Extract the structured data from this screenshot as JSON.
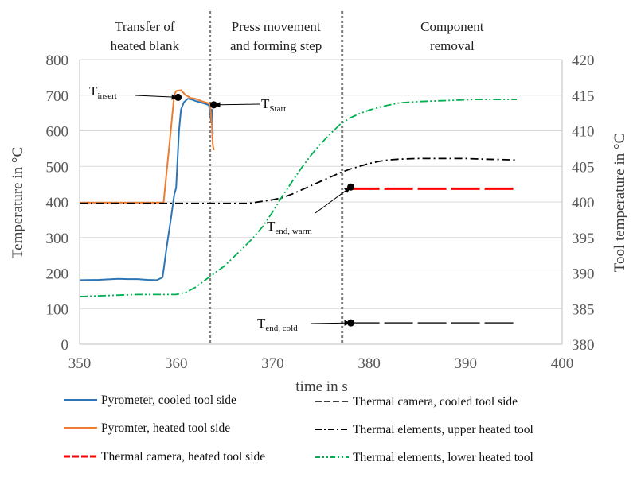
{
  "chart_data": {
    "type": "line",
    "xlabel": "time in s",
    "ylabel": "Temperature in °C",
    "y2label": "Tool temperature in °C",
    "xlim": [
      350,
      400
    ],
    "ylim": [
      0,
      800
    ],
    "y2lim": [
      380,
      420
    ],
    "x_ticks": [
      "350",
      "360",
      "370",
      "380",
      "390",
      "400"
    ],
    "y_ticks": [
      "0",
      "100",
      "200",
      "300",
      "400",
      "500",
      "600",
      "700",
      "800"
    ],
    "y2_ticks": [
      "380",
      "385",
      "390",
      "395",
      "400",
      "405",
      "410",
      "415",
      "420"
    ],
    "grid": "horizontal",
    "phases": [
      {
        "label_line1": "Transfer of",
        "label_line2": "heated blank",
        "x_start": 350,
        "x_end": 363.5
      },
      {
        "label_line1": "Press movement",
        "label_line2": "and forming step",
        "x_start": 363.5,
        "x_end": 377.2
      },
      {
        "label_line1": "Component",
        "label_line2": "removal",
        "x_start": 377.2,
        "x_end": 400
      }
    ],
    "phase_dividers_x": [
      363.5,
      377.2
    ],
    "annotations": [
      {
        "main": "T",
        "sub": "insert",
        "point_x": 360.2,
        "point_y": 694,
        "axis": "left"
      },
      {
        "main": "T",
        "sub": "Start",
        "point_x": 363.9,
        "point_y": 673,
        "axis": "left"
      },
      {
        "main": "T",
        "sub": "end, warm",
        "point_x": 378.1,
        "point_y": 442,
        "axis": "left"
      },
      {
        "main": "T",
        "sub": "end, cold",
        "point_x": 378.1,
        "point_y": 60,
        "axis": "left"
      }
    ],
    "series": [
      {
        "name": "Pyrometer, cooled tool side",
        "axis": "left",
        "color": "#2e75b6",
        "style": "solid",
        "x": [
          350,
          352,
          354,
          355,
          356,
          357,
          358,
          358.6,
          359.0,
          359.5,
          359.8,
          360.0,
          360.3,
          360.5,
          360.8,
          361.2,
          361.6,
          362.0,
          362.5,
          363.0,
          363.4,
          363.6,
          363.7,
          363.8
        ],
        "y": [
          180,
          181,
          184,
          183,
          183,
          181,
          180,
          188,
          270,
          360,
          420,
          440,
          600,
          660,
          680,
          690,
          688,
          684,
          680,
          676,
          672,
          630,
          660,
          590
        ]
      },
      {
        "name": "Pyromter, heated tool side",
        "axis": "left",
        "color": "#ed7d31",
        "style": "solid",
        "x": [
          350,
          352,
          355,
          357,
          358.7,
          359.3,
          359.8,
          360.0,
          360.5,
          361.0,
          361.5,
          362.0,
          362.5,
          363.0,
          363.5,
          363.7,
          363.8,
          363.9
        ],
        "y": [
          398,
          398,
          398,
          398,
          398,
          560,
          700,
          712,
          714,
          700,
          692,
          690,
          685,
          680,
          676,
          620,
          560,
          545
        ]
      },
      {
        "name": "Thermal camera, heated tool side",
        "axis": "left",
        "color": "#ff0000",
        "style": "dashed-bold",
        "x": [
          378.1,
          395.3
        ],
        "y": [
          437,
          437
        ]
      },
      {
        "name": "Thermal camera, cooled tool side",
        "axis": "left",
        "color": "#404040",
        "style": "dashed",
        "x": [
          378.1,
          395.3
        ],
        "y": [
          60,
          60
        ]
      },
      {
        "name": "Thermal elements, upper heated tool",
        "axis": "right",
        "color": "#000000",
        "style": "dashdot",
        "x": [
          350,
          355,
          360,
          365,
          367.5,
          369,
          370,
          371,
          372,
          373,
          374,
          375,
          376,
          377,
          378,
          379,
          380,
          381,
          382,
          383,
          385,
          388,
          390,
          392,
          395.3
        ],
        "y": [
          399.8,
          399.8,
          399.8,
          399.8,
          399.8,
          400.1,
          400.3,
          400.6,
          401.1,
          401.7,
          402.3,
          402.9,
          403.5,
          404.1,
          404.6,
          405.0,
          405.4,
          405.7,
          405.9,
          406.0,
          406.1,
          406.1,
          406.1,
          406.0,
          405.9
        ]
      },
      {
        "name": "Thermal elements, lower heated tool",
        "axis": "right",
        "color": "#00b050",
        "style": "dashdotdot",
        "x": [
          350,
          352,
          354,
          356,
          358,
          360,
          361,
          362,
          363,
          364,
          365,
          366,
          367,
          368,
          369,
          370,
          371,
          372,
          373,
          374,
          375,
          376,
          377,
          378,
          379,
          380,
          381,
          382,
          383,
          384,
          385,
          387,
          389,
          391,
          393,
          395.3
        ],
        "y": [
          386.7,
          386.8,
          386.9,
          387.0,
          387.0,
          387.0,
          387.3,
          388.0,
          389.0,
          390.0,
          391.0,
          392.3,
          393.6,
          395.0,
          396.6,
          398.6,
          400.8,
          402.8,
          404.8,
          406.6,
          408.2,
          409.6,
          410.9,
          411.8,
          412.4,
          412.9,
          413.3,
          413.6,
          413.9,
          414.0,
          414.1,
          414.2,
          414.3,
          414.4,
          414.4,
          414.4
        ]
      }
    ]
  }
}
